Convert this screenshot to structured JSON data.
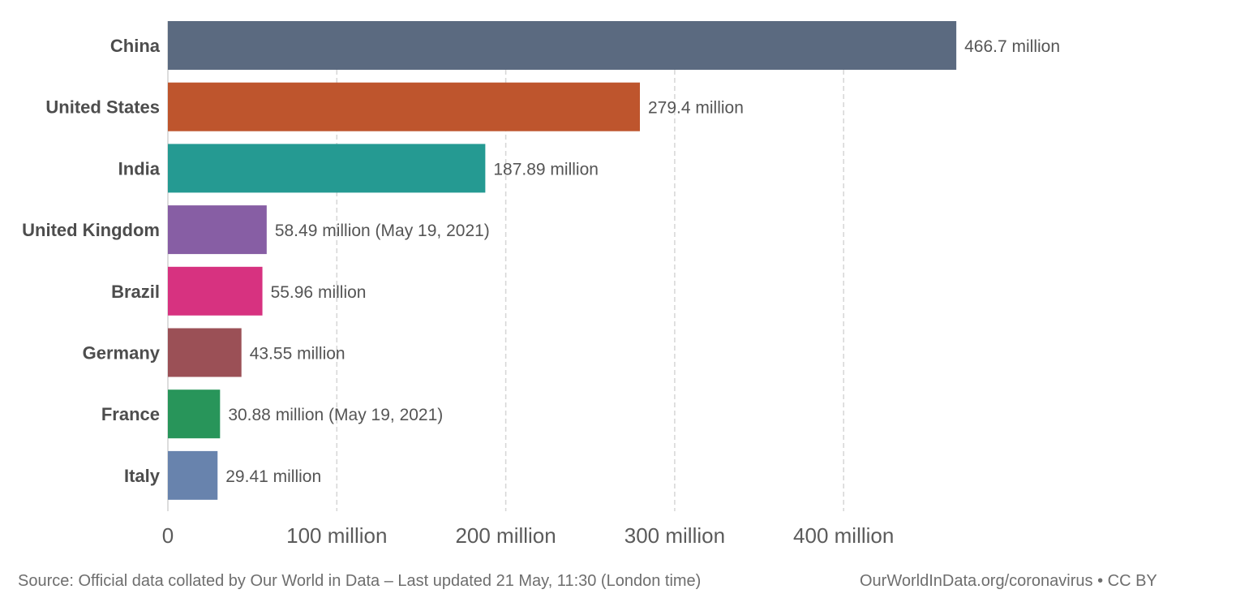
{
  "chart_data": {
    "type": "bar",
    "orientation": "horizontal",
    "categories": [
      "China",
      "United States",
      "India",
      "United Kingdom",
      "Brazil",
      "Germany",
      "France",
      "Italy"
    ],
    "values": [
      466.7,
      279.4,
      187.89,
      58.49,
      55.96,
      43.55,
      30.88,
      29.41
    ],
    "value_labels": [
      "466.7 million",
      "279.4 million",
      "187.89 million",
      "58.49 million (May 19, 2021)",
      "55.96 million",
      "43.55 million",
      "30.88 million (May 19, 2021)",
      "29.41 million"
    ],
    "colors": [
      "#5b6a80",
      "#be552d",
      "#259a92",
      "#875ea4",
      "#d73280",
      "#9b5056",
      "#28955a",
      "#6883ad"
    ],
    "x_ticks": [
      0,
      100,
      200,
      300,
      400
    ],
    "x_tick_labels": [
      "0",
      "100 million",
      "200 million",
      "300 million",
      "400 million"
    ],
    "xlim": [
      0,
      630
    ],
    "unit": "million",
    "grid": "vertical dashed"
  },
  "footer": {
    "source": "Source: Official data collated by Our World in Data – Last updated 21 May, 11:30 (London time)",
    "credit": "OurWorldInData.org/coronavirus • CC BY"
  }
}
